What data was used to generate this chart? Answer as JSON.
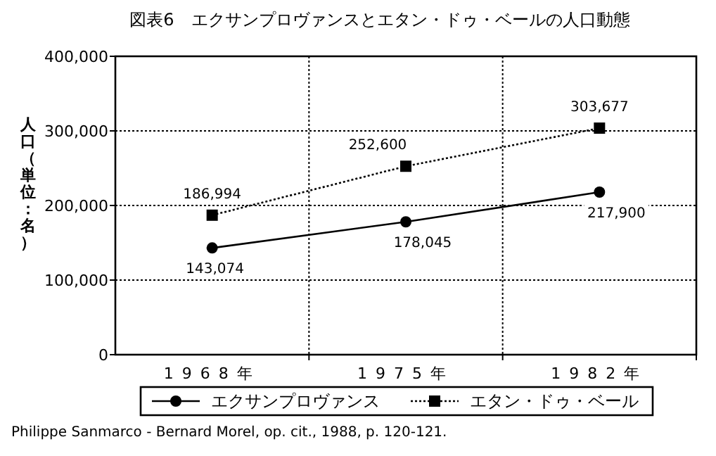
{
  "chart_data": {
    "type": "line",
    "title": "図表6　エクサンプロヴァンスとエタン・ドゥ・ベールの人口動態",
    "ylabel": "人口（単位：名）",
    "categories": [
      "1968年",
      "1975年",
      "1982年"
    ],
    "series": [
      {
        "name": "エクサンプロヴァンス",
        "color": "#000000",
        "values": [
          143074,
          178045,
          217900
        ],
        "value_labels": [
          "143,074",
          "178,045",
          "217,900"
        ],
        "marker": "circle",
        "line_style": "solid"
      },
      {
        "name": "エタン・ドゥ・ベール",
        "color": "#000000",
        "values": [
          186994,
          252600,
          303677
        ],
        "value_labels": [
          "186,994",
          "252,600",
          "303,677"
        ],
        "marker": "square",
        "line_style": "dotted"
      }
    ],
    "ylim": [
      0,
      400000
    ],
    "yticks": [
      {
        "value": 0,
        "label": "0"
      },
      {
        "value": 100000,
        "label": "100,000"
      },
      {
        "value": 200000,
        "label": "200,000"
      },
      {
        "value": 300000,
        "label": "300,000"
      },
      {
        "value": 400000,
        "label": "400,000"
      }
    ],
    "grid": true,
    "legend": "bottom",
    "annotations": [
      "Philippe Sanmarco - Bernard Morel, op. cit., 1988, p. 120-121."
    ]
  }
}
